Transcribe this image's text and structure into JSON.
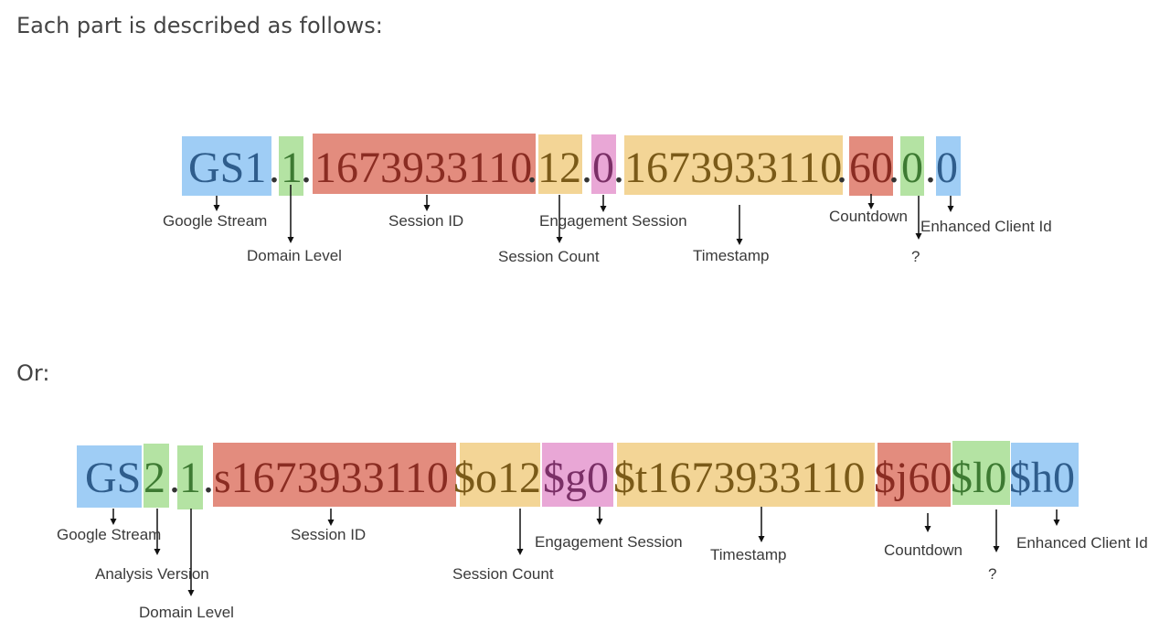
{
  "intro_text": "Each part is described as follows:",
  "or_text": "Or:",
  "colors": {
    "blue": "#9fcdf5",
    "green": "#b4e3a3",
    "red": "#e38c7e",
    "orange": "#f3d596",
    "pink": "#e9a7d6",
    "token_blue": "#2f5d8c",
    "token_green": "#3d7a32",
    "token_red": "#8a2c22",
    "token_orange": "#7a5a18",
    "token_pink": "#7a2f66",
    "token_plain": "#333333"
  },
  "diagram1": {
    "tokens": [
      "GS1",
      ".",
      "1",
      ".",
      "1673933110",
      ".",
      "12",
      ".",
      "0",
      ".",
      "1673933110",
      ".",
      "60",
      ".",
      "0",
      ".",
      "0"
    ],
    "labels": [
      "Google Stream",
      "Domain Level",
      "Session ID",
      "Engagement Session",
      "Session Count",
      "Timestamp",
      "Countdown",
      "?",
      "Enhanced Client Id"
    ]
  },
  "diagram2": {
    "tokens": [
      "GS",
      "2",
      ".",
      "1",
      ".",
      "s1673933110",
      "$o12",
      "$g0",
      "$t1673933110",
      "$j60",
      "$l0",
      "$h0"
    ],
    "labels": [
      "Google Stream",
      "Analysis Version",
      "Domain Level",
      "Session ID",
      "Engagement Session",
      "Session Count",
      "Timestamp",
      "Countdown",
      "?",
      "Enhanced Client Id"
    ]
  }
}
